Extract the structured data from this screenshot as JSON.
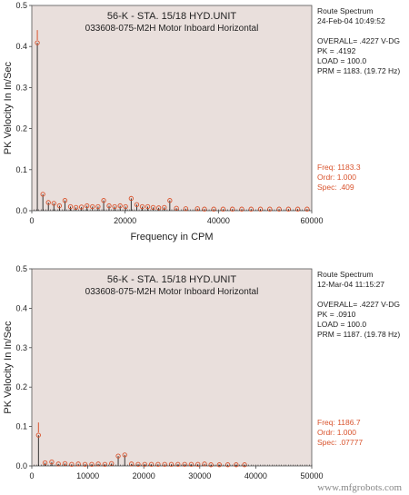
{
  "chart_data": [
    {
      "type": "line",
      "title": "56-K - STA. 15/18 HYD.UNIT",
      "subtitle": "033608-075-M2H Motor Inboard Horizontal",
      "xlabel": "Frequency in CPM",
      "ylabel": "PK Velocity In In/Sec",
      "xlim": [
        0,
        60000
      ],
      "ylim": [
        0,
        0.5
      ],
      "x_ticks": [
        "0",
        "20000",
        "40000",
        "60000"
      ],
      "y_ticks": [
        "0.0",
        "0.1",
        "0.2",
        "0.3",
        "0.4",
        "0.5"
      ],
      "background": "#e9dfdc",
      "grid": false,
      "info": [
        "Route Spectrum",
        "24-Feb-04 10:49:52",
        "",
        "OVERALL= .4227 V-DG",
        "PK = .4192",
        "LOAD = 100.0",
        "PRM = 1183. (19.72 Hz)"
      ],
      "annotations": [
        "Freq: 1183.3",
        "Ordr: 1.000",
        "Spec: .409"
      ],
      "cursor_color": "#d9542e",
      "peaks": [
        {
          "x": 1183,
          "y": 0.409
        },
        {
          "x": 2370,
          "y": 0.04
        },
        {
          "x": 3550,
          "y": 0.02
        },
        {
          "x": 4730,
          "y": 0.018
        },
        {
          "x": 5920,
          "y": 0.012
        },
        {
          "x": 7100,
          "y": 0.025
        },
        {
          "x": 8280,
          "y": 0.01
        },
        {
          "x": 9470,
          "y": 0.008
        },
        {
          "x": 10650,
          "y": 0.009
        },
        {
          "x": 11830,
          "y": 0.012
        },
        {
          "x": 13000,
          "y": 0.01
        },
        {
          "x": 14200,
          "y": 0.01
        },
        {
          "x": 15400,
          "y": 0.025
        },
        {
          "x": 16560,
          "y": 0.012
        },
        {
          "x": 17750,
          "y": 0.01
        },
        {
          "x": 18930,
          "y": 0.012
        },
        {
          "x": 20100,
          "y": 0.01
        },
        {
          "x": 21300,
          "y": 0.03
        },
        {
          "x": 22500,
          "y": 0.015
        },
        {
          "x": 23670,
          "y": 0.01
        },
        {
          "x": 24850,
          "y": 0.01
        },
        {
          "x": 26000,
          "y": 0.008
        },
        {
          "x": 27200,
          "y": 0.007
        },
        {
          "x": 28400,
          "y": 0.008
        },
        {
          "x": 29580,
          "y": 0.025
        },
        {
          "x": 31000,
          "y": 0.006
        },
        {
          "x": 33000,
          "y": 0.005
        },
        {
          "x": 35500,
          "y": 0.005
        },
        {
          "x": 37000,
          "y": 0.004
        },
        {
          "x": 39000,
          "y": 0.004
        },
        {
          "x": 41000,
          "y": 0.004
        },
        {
          "x": 43000,
          "y": 0.004
        },
        {
          "x": 45000,
          "y": 0.004
        },
        {
          "x": 47000,
          "y": 0.004
        },
        {
          "x": 49000,
          "y": 0.004
        },
        {
          "x": 51000,
          "y": 0.004
        },
        {
          "x": 53000,
          "y": 0.004
        },
        {
          "x": 55000,
          "y": 0.004
        },
        {
          "x": 57000,
          "y": 0.004
        },
        {
          "x": 59000,
          "y": 0.004
        }
      ]
    },
    {
      "type": "line",
      "title": "56-K - STA. 15/18 HYD.UNIT",
      "subtitle": "033608-075-M2H Motor Inboard Horizontal",
      "xlabel": "Frequency in CPM",
      "ylabel": "PK Velocity In In/Sec",
      "xlim": [
        0,
        50000
      ],
      "ylim": [
        0,
        0.5
      ],
      "x_ticks": [
        "0",
        "10000",
        "20000",
        "30000",
        "40000",
        "50000"
      ],
      "y_ticks": [
        "0.0",
        "0.1",
        "0.2",
        "0.3",
        "0.4",
        "0.5"
      ],
      "background": "#e9dfdc",
      "grid": false,
      "info": [
        "Route Spectrum",
        "12-Mar-04 11:15:27",
        "",
        "OVERALL= .4227 V-DG",
        "PK = .0910",
        "LOAD = 100.0",
        "PRM = 1187. (19.78 Hz)"
      ],
      "annotations": [
        "Freq: 1186.7",
        "Ordr: 1.000",
        "Spec: .07777"
      ],
      "cursor_color": "#d9542e",
      "peaks": [
        {
          "x": 1187,
          "y": 0.078
        },
        {
          "x": 2370,
          "y": 0.008
        },
        {
          "x": 3560,
          "y": 0.01
        },
        {
          "x": 4750,
          "y": 0.005
        },
        {
          "x": 5930,
          "y": 0.006
        },
        {
          "x": 7120,
          "y": 0.004
        },
        {
          "x": 8300,
          "y": 0.005
        },
        {
          "x": 9500,
          "y": 0.004
        },
        {
          "x": 10700,
          "y": 0.004
        },
        {
          "x": 11870,
          "y": 0.005
        },
        {
          "x": 13050,
          "y": 0.004
        },
        {
          "x": 14240,
          "y": 0.006
        },
        {
          "x": 15430,
          "y": 0.025
        },
        {
          "x": 16600,
          "y": 0.028
        },
        {
          "x": 17800,
          "y": 0.005
        },
        {
          "x": 18990,
          "y": 0.004
        },
        {
          "x": 20170,
          "y": 0.004
        },
        {
          "x": 21360,
          "y": 0.004
        },
        {
          "x": 22550,
          "y": 0.004
        },
        {
          "x": 23730,
          "y": 0.004
        },
        {
          "x": 24920,
          "y": 0.004
        },
        {
          "x": 26100,
          "y": 0.004
        },
        {
          "x": 27300,
          "y": 0.004
        },
        {
          "x": 28480,
          "y": 0.004
        },
        {
          "x": 29670,
          "y": 0.004
        },
        {
          "x": 30850,
          "y": 0.005
        },
        {
          "x": 32000,
          "y": 0.003
        },
        {
          "x": 33500,
          "y": 0.003
        },
        {
          "x": 35000,
          "y": 0.003
        },
        {
          "x": 36500,
          "y": 0.003
        },
        {
          "x": 38000,
          "y": 0.003
        }
      ]
    }
  ],
  "watermark": "www.mfgrobots.com"
}
